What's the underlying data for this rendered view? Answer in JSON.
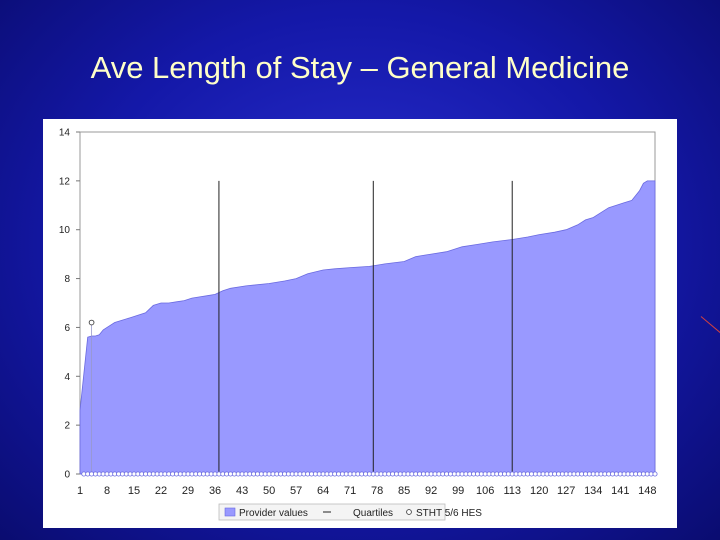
{
  "slide": {
    "title": "Ave Length of Stay – General Medicine",
    "background_color": "#1418a8",
    "title_color": "#ffffc8"
  },
  "chart_data": {
    "type": "area",
    "title": "Ave Length of Stay – General Medicine",
    "xlabel": "",
    "ylabel": "",
    "xlim": [
      1,
      150
    ],
    "ylim": [
      0,
      14
    ],
    "yticks": [
      0,
      2,
      4,
      6,
      8,
      10,
      12,
      14
    ],
    "xticks": [
      1,
      8,
      15,
      22,
      29,
      36,
      43,
      50,
      57,
      64,
      71,
      78,
      85,
      92,
      99,
      106,
      113,
      120,
      127,
      134,
      141,
      148
    ],
    "grid": false,
    "legend_position": "bottom",
    "fill_color": "#9999ff",
    "quartile_lines_x": [
      37,
      77,
      113
    ],
    "legend": [
      {
        "label": "Provider values",
        "type": "area"
      },
      {
        "label": "Quartiles",
        "type": "line"
      },
      {
        "label": "STHT 5/6 HES",
        "type": "marker"
      }
    ],
    "series": [
      {
        "name": "Provider values",
        "type": "area",
        "x": [
          1,
          3,
          4,
          5,
          6,
          7,
          8,
          10,
          12,
          14,
          16,
          18,
          20,
          22,
          24,
          26,
          28,
          30,
          32,
          34,
          36,
          38,
          40,
          44,
          50,
          54,
          57,
          60,
          64,
          67,
          71,
          76,
          80,
          85,
          88,
          92,
          96,
          100,
          104,
          108,
          113,
          117,
          120,
          124,
          127,
          130,
          132,
          134,
          136,
          138,
          140,
          142,
          144,
          145,
          146,
          147,
          148,
          150
        ],
        "values": [
          2.6,
          5.6,
          5.65,
          5.65,
          5.7,
          5.9,
          6.0,
          6.2,
          6.3,
          6.4,
          6.5,
          6.6,
          6.9,
          7.0,
          7.0,
          7.05,
          7.1,
          7.2,
          7.25,
          7.3,
          7.35,
          7.5,
          7.6,
          7.7,
          7.8,
          7.9,
          8.0,
          8.2,
          8.35,
          8.4,
          8.45,
          8.5,
          8.6,
          8.7,
          8.9,
          9.0,
          9.1,
          9.3,
          9.4,
          9.5,
          9.6,
          9.7,
          9.8,
          9.9,
          10.0,
          10.2,
          10.4,
          10.5,
          10.7,
          10.9,
          11.0,
          11.1,
          11.2,
          11.4,
          11.6,
          11.9,
          12.0,
          12.0
        ]
      },
      {
        "name": "STHT 5/6 HES",
        "type": "marker",
        "x": [
          4
        ],
        "values": [
          6.2
        ]
      }
    ]
  }
}
